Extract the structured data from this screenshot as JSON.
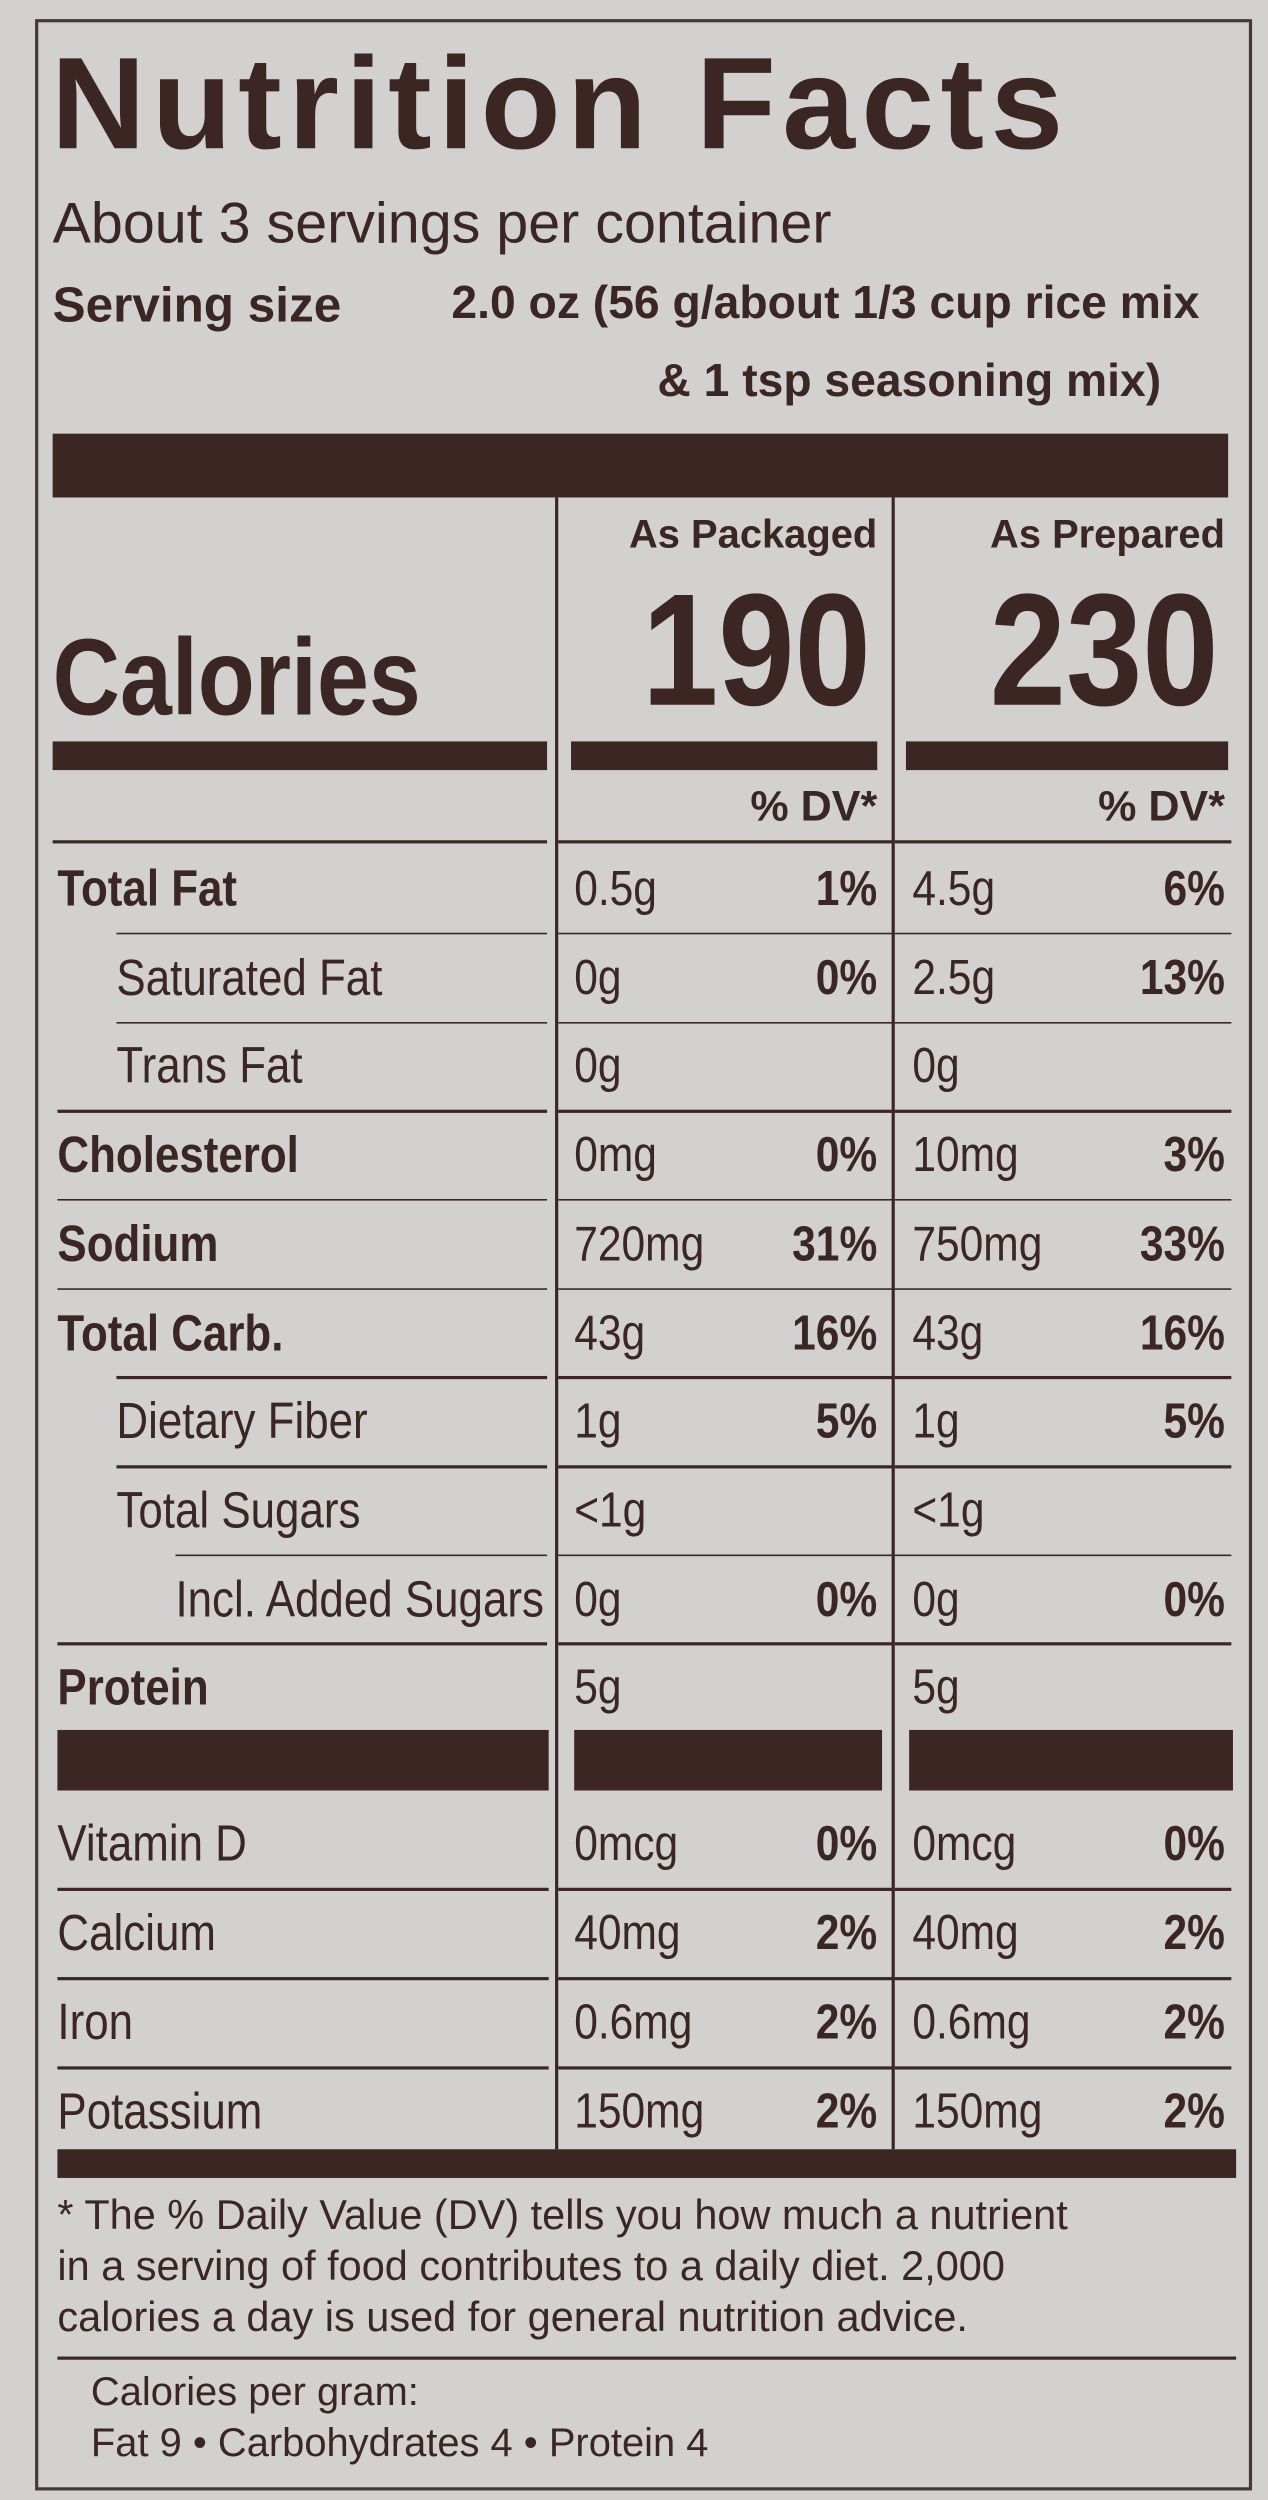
{
  "header": {
    "title": "Nutrition Facts",
    "servings": "About 3 servings per container",
    "serving_size_label": "Serving size",
    "serving_size_value": [
      "2.0 oz (56 g/about 1/3 cup rice mix",
      "& 1 tsp seasoning mix)"
    ]
  },
  "calories": {
    "label": "Calories",
    "columns": [
      {
        "heading": "As Packaged",
        "value": "190",
        "dv_heading": "% DV*"
      },
      {
        "heading": "As Prepared",
        "value": "230",
        "dv_heading": "% DV*"
      }
    ]
  },
  "nutrients": [
    {
      "name": "Total Fat",
      "bold": true,
      "indent": 0,
      "packaged": {
        "amount": "0.5g",
        "dv": "1%"
      },
      "prepared": {
        "amount": "4.5g",
        "dv": "6%"
      }
    },
    {
      "name": "Saturated Fat",
      "bold": false,
      "indent": 1,
      "packaged": {
        "amount": "0g",
        "dv": "0%"
      },
      "prepared": {
        "amount": "2.5g",
        "dv": "13%"
      }
    },
    {
      "name": "Trans Fat",
      "bold": false,
      "indent": 1,
      "packaged": {
        "amount": "0g"
      },
      "prepared": {
        "amount": "0g"
      }
    },
    {
      "name": "Cholesterol",
      "bold": true,
      "indent": 0,
      "packaged": {
        "amount": "0mg",
        "dv": "0%"
      },
      "prepared": {
        "amount": "10mg",
        "dv": "3%"
      }
    },
    {
      "name": "Sodium",
      "bold": true,
      "indent": 0,
      "packaged": {
        "amount": "720mg",
        "dv": "31%"
      },
      "prepared": {
        "amount": "750mg",
        "dv": "33%"
      }
    },
    {
      "name": "Total Carb.",
      "bold": true,
      "indent": 0,
      "packaged": {
        "amount": "43g",
        "dv": "16%"
      },
      "prepared": {
        "amount": "43g",
        "dv": "16%"
      }
    },
    {
      "name": "Dietary Fiber",
      "bold": false,
      "indent": 1,
      "packaged": {
        "amount": "1g",
        "dv": "5%"
      },
      "prepared": {
        "amount": "1g",
        "dv": "5%"
      }
    },
    {
      "name": "Total Sugars",
      "bold": false,
      "indent": 1,
      "packaged": {
        "amount": "<1g"
      },
      "prepared": {
        "amount": "<1g"
      }
    },
    {
      "name": "Incl. Added Sugars",
      "bold": false,
      "indent": 2,
      "packaged": {
        "amount": "0g",
        "dv": "0%"
      },
      "prepared": {
        "amount": "0g",
        "dv": "0%"
      }
    },
    {
      "name": "Protein",
      "bold": true,
      "indent": 0,
      "packaged": {
        "amount": "5g"
      },
      "prepared": {
        "amount": "5g"
      }
    }
  ],
  "vitamins": [
    {
      "name": "Vitamin D",
      "packaged": {
        "amount": "0mcg",
        "dv": "0%"
      },
      "prepared": {
        "amount": "0mcg",
        "dv": "0%"
      }
    },
    {
      "name": "Calcium",
      "packaged": {
        "amount": "40mg",
        "dv": "2%"
      },
      "prepared": {
        "amount": "40mg",
        "dv": "2%"
      }
    },
    {
      "name": "Iron",
      "packaged": {
        "amount": "0.6mg",
        "dv": "2%"
      },
      "prepared": {
        "amount": "0.6mg",
        "dv": "2%"
      }
    },
    {
      "name": "Potassium",
      "packaged": {
        "amount": "150mg",
        "dv": "2%"
      },
      "prepared": {
        "amount": "150mg",
        "dv": "2%"
      }
    }
  ],
  "footnote": [
    "* The % Daily Value (DV) tells you how much a nutrient",
    "in a serving of food contributes to a daily diet. 2,000",
    "calories a day is used for general nutrition advice."
  ],
  "calories_per_gram": {
    "label": "Calories per gram:",
    "text": "Fat 9 • Carbohydrates 4 • Protein 4"
  }
}
